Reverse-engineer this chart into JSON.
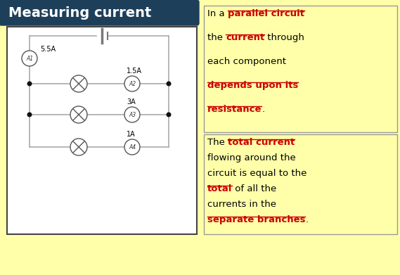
{
  "title": "Measuring current",
  "title_bg": "#1e3f5a",
  "title_text_color": "#ffffff",
  "bg_color": "#ffffaa",
  "circuit_bg": "#ffffff",
  "circuit_border": "#444444",
  "ammeter_color": "#ffffff",
  "ammeter_border": "#555555",
  "wire_color": "#aaaaaa",
  "bulb_color": "#ffffff",
  "bulb_border": "#555555",
  "junction_color": "#111111",
  "box_border": "#999999",
  "font_family": "DejaVu Sans",
  "box1_segments": [
    {
      "text": "In a ",
      "color": "#000000",
      "bold": false,
      "underline": false,
      "newline_after": false
    },
    {
      "text": "parallel circuit",
      "color": "#cc0000",
      "bold": true,
      "underline": true,
      "newline_after": true
    },
    {
      "text": "the ",
      "color": "#000000",
      "bold": false,
      "underline": false,
      "newline_after": false
    },
    {
      "text": "current",
      "color": "#cc0000",
      "bold": true,
      "underline": true,
      "newline_after": false
    },
    {
      "text": " through",
      "color": "#000000",
      "bold": false,
      "underline": false,
      "newline_after": true
    },
    {
      "text": "each component",
      "color": "#000000",
      "bold": false,
      "underline": false,
      "newline_after": true
    },
    {
      "text": "depends upon its",
      "color": "#cc0000",
      "bold": true,
      "underline": true,
      "newline_after": true
    },
    {
      "text": "resistance",
      "color": "#cc0000",
      "bold": true,
      "underline": true,
      "newline_after": false
    },
    {
      "text": ".",
      "color": "#000000",
      "bold": false,
      "underline": false,
      "newline_after": false
    }
  ],
  "box2_segments": [
    {
      "text": "The ",
      "color": "#000000",
      "bold": false,
      "underline": false,
      "newline_after": false
    },
    {
      "text": "total current",
      "color": "#cc0000",
      "bold": true,
      "underline": true,
      "newline_after": true
    },
    {
      "text": "flowing around the",
      "color": "#000000",
      "bold": false,
      "underline": false,
      "newline_after": true
    },
    {
      "text": "circuit is equal to the",
      "color": "#000000",
      "bold": false,
      "underline": false,
      "newline_after": true
    },
    {
      "text": "total",
      "color": "#cc0000",
      "bold": true,
      "underline": true,
      "newline_after": false
    },
    {
      "text": " of all the",
      "color": "#000000",
      "bold": false,
      "underline": false,
      "newline_after": true
    },
    {
      "text": "currents in the",
      "color": "#000000",
      "bold": false,
      "underline": false,
      "newline_after": true
    },
    {
      "text": "separate branches",
      "color": "#cc0000",
      "bold": true,
      "underline": true,
      "newline_after": false
    },
    {
      "text": ".",
      "color": "#000000",
      "bold": false,
      "underline": false,
      "newline_after": false
    }
  ]
}
